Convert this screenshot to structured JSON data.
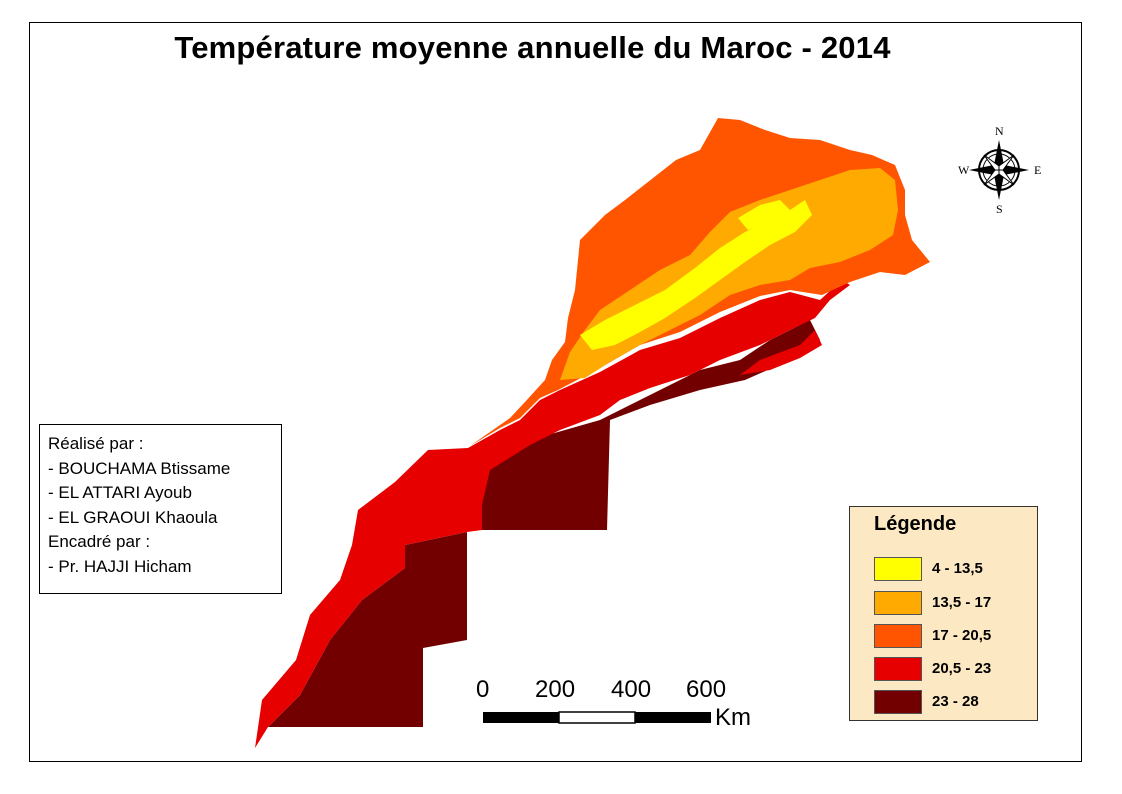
{
  "title": "Température moyenne annuelle du Maroc - 2014",
  "credits": {
    "line1": "Réalisé par :",
    "line2": "- BOUCHAMA Btissame",
    "line3": "- EL ATTARI Ayoub",
    "line4": "- EL GRAOUI Khaoula",
    "line5": "Encadré par :",
    "line6": "- Pr. HAJJI Hicham"
  },
  "legend": {
    "title": "Légende",
    "items": [
      {
        "label": "4 - 13,5",
        "color": "#ffff00"
      },
      {
        "label": "13,5 - 17",
        "color": "#ffaa00"
      },
      {
        "label": "17 - 20,5",
        "color": "#ff5500"
      },
      {
        "label": "20,5 - 23",
        "color": "#e60000"
      },
      {
        "label": "23 - 28",
        "color": "#730000"
      }
    ]
  },
  "scale_bar": {
    "labels": [
      "0",
      "200",
      "400",
      "600"
    ],
    "unit": "Km"
  },
  "compass": {
    "n": "N",
    "s": "S",
    "e": "E",
    "w": "W"
  },
  "icons": [
    "north-arrow-icon"
  ]
}
